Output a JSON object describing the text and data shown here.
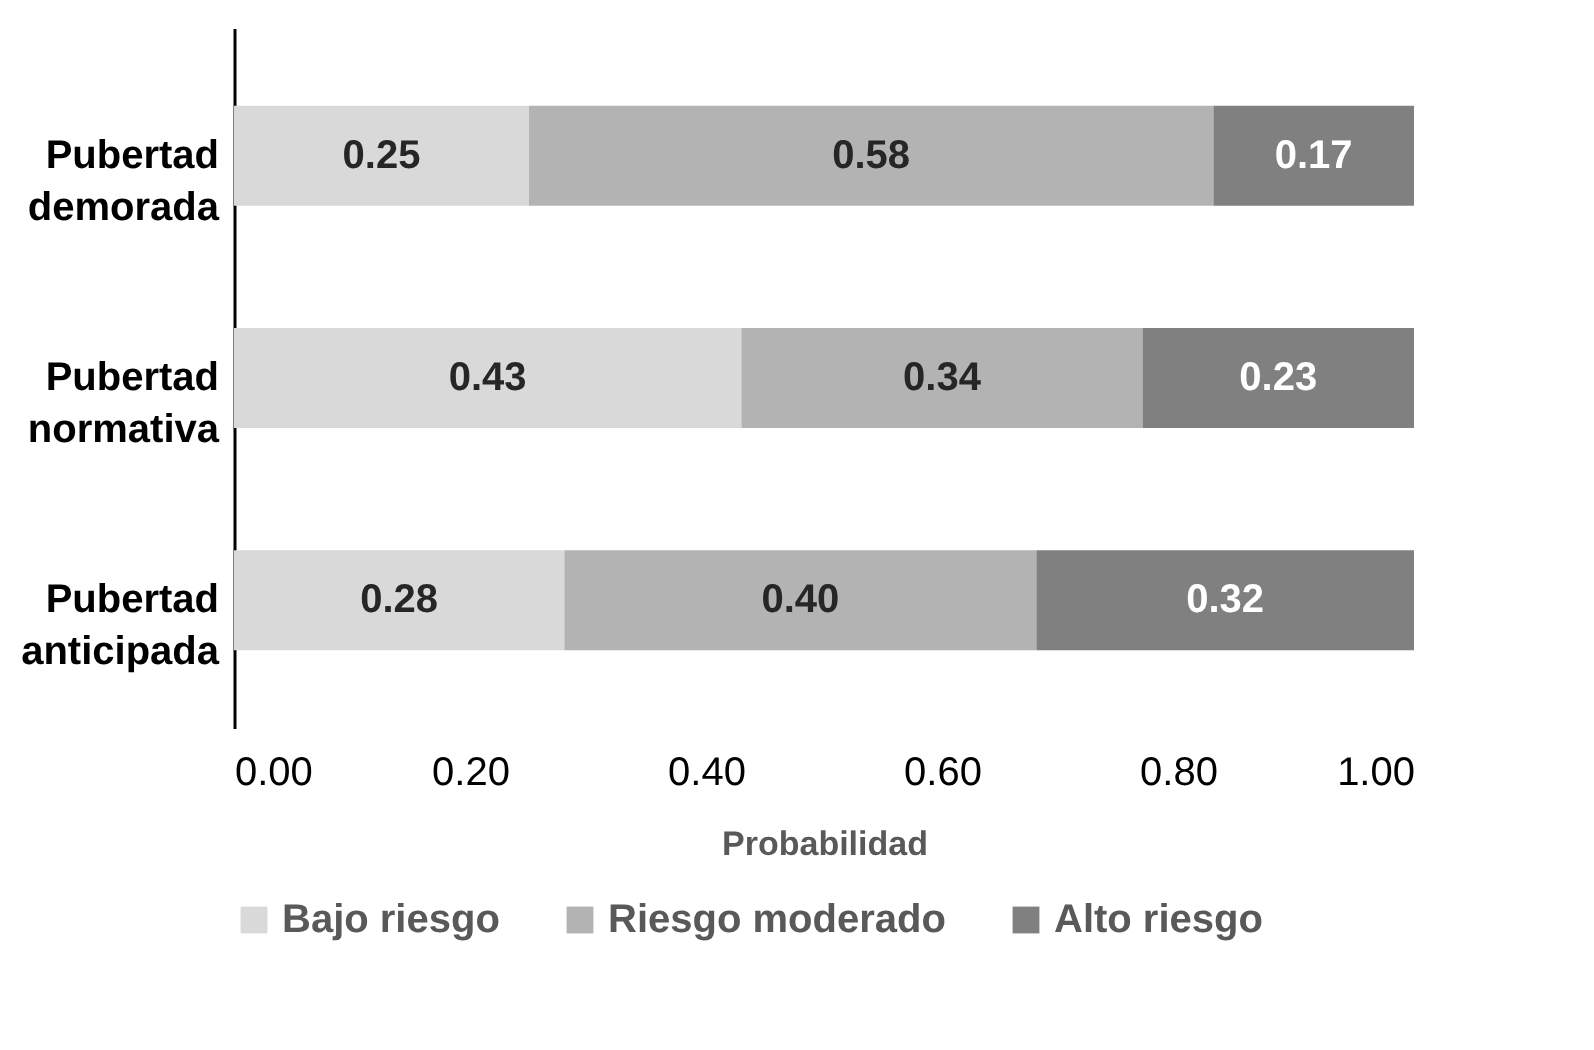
{
  "chart_data": {
    "type": "bar",
    "orientation": "horizontal",
    "stacked": true,
    "xlabel": "Probabilidad",
    "categories": [
      "Pubertad demorada",
      "Pubertad normativa",
      "Pubertad anticipada"
    ],
    "series": [
      {
        "name": "Bajo riesgo",
        "color": "#d9d9d9",
        "values": [
          0.25,
          0.43,
          0.28
        ],
        "value_labels": [
          "0.25",
          "0.43",
          "0.28"
        ]
      },
      {
        "name": "Riesgo moderado",
        "color": "#b3b3b3",
        "values": [
          0.58,
          0.34,
          0.4
        ],
        "value_labels": [
          "0.58",
          "0.34",
          "0.40"
        ]
      },
      {
        "name": "Alto riesgo",
        "color": "#808080",
        "values": [
          0.17,
          0.23,
          0.32
        ],
        "value_labels": [
          "0.17",
          "0.23",
          "0.32"
        ]
      }
    ],
    "xlim": [
      0,
      1
    ],
    "xticks": [
      {
        "value": 0,
        "label": "0.00"
      },
      {
        "value": 0.2,
        "label": "0.20"
      },
      {
        "value": 0.4,
        "label": "0.40"
      },
      {
        "value": 0.6,
        "label": "0.60"
      },
      {
        "value": 0.8,
        "label": "0.80"
      },
      {
        "value": 1,
        "label": "1.00"
      }
    ],
    "legend": "bottom",
    "grid": false
  }
}
